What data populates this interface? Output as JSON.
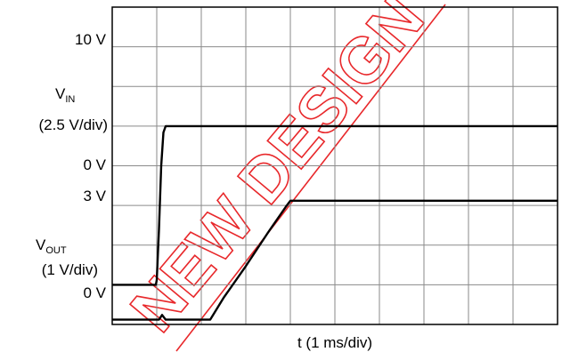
{
  "chart_data": {
    "type": "line",
    "title": "",
    "xlabel": "t (1 ms/div)",
    "x_unit": "ms",
    "xlim": [
      0,
      10
    ],
    "grid": true,
    "grid_divisions": {
      "x": 10,
      "y": 8
    },
    "watermark": "NEW DESIGN",
    "watermark_color": "#e8282b",
    "trace_color": "#000000",
    "series": [
      {
        "name": "VIN",
        "scale": "2.5 V/div",
        "y_labels": {
          "top": "10 V",
          "bottom": "0 V"
        },
        "x": [
          0,
          0.98,
          1.0,
          1.05,
          1.1,
          1.15,
          1.2,
          10
        ],
        "y": [
          0,
          0,
          0.3,
          3.5,
          7.5,
          9.6,
          10,
          10
        ]
      },
      {
        "name": "VOUT",
        "scale": "1 V/div",
        "y_labels": {
          "top": "3 V",
          "bottom": "0 V"
        },
        "x": [
          0,
          1.05,
          1.12,
          1.2,
          2.2,
          2.5,
          3.0,
          3.5,
          3.9,
          4.0,
          10
        ],
        "y": [
          0,
          0,
          0.12,
          0,
          0,
          0.55,
          1.35,
          2.2,
          2.85,
          3,
          3
        ]
      }
    ]
  },
  "labels": {
    "vin_top": "10 V",
    "vin_name_main": "V",
    "vin_name_sub": "IN",
    "vin_scale": "(2.5 V/div)",
    "vin_zero": "0 V",
    "vout_top": "3 V",
    "vout_name_main": "V",
    "vout_name_sub": "OUT",
    "vout_scale": "(1 V/div)",
    "vout_zero": "0 V",
    "x_axis": "t (1 ms/div)",
    "watermark": "NEW DESIGN"
  }
}
